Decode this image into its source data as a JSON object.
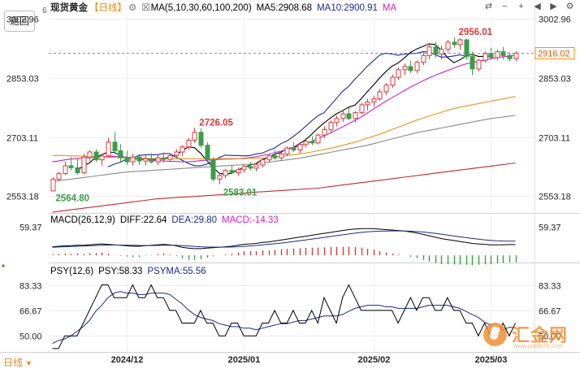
{
  "header": {
    "back_label": "返回",
    "corner_number": "6",
    "instrument": "现货黄金",
    "period_badge": "【日线】",
    "settings_glyph": "⚙",
    "ma_check_glyph": "☒",
    "ma_label": "MA(5,10,30,60,100,200)",
    "ma5": "MA5:2908.68",
    "ma10": "MA10:2900.91",
    "ma_more": "MA"
  },
  "toolbar": {
    "icons": [
      "swap-icon",
      "minus-icon",
      "plus-icon",
      "left-arrow-icon",
      "right-arrow-icon",
      "settings-icon"
    ]
  },
  "colors": {
    "up": "#d93a3a",
    "down": "#3a9d4a",
    "ma5": "#000000",
    "ma10": "#1c2a8c",
    "ma30": "#d11fc9",
    "ma60": "#e8931a",
    "ma100": "#8a8a8a",
    "ma200": "#c8282e",
    "psy": "#000000",
    "psyma": "#1c2a8c",
    "last_price_bg": "#ff8c00",
    "brand": "#f08a2e",
    "label_red": "#d93a3a",
    "label_green": "#3a9d4a"
  },
  "price_axis": {
    "ticks": [
      "3002.96",
      "2853.03",
      "2703.11",
      "2553.18"
    ],
    "last_price": "2916.02"
  },
  "annotations": {
    "high": "2956.01",
    "left_high": "2726.05",
    "left_low": "2564.80",
    "mid_low": "2583.01"
  },
  "macd": {
    "label": "MACD(26,12,9)",
    "diff": "DIFF:22.64",
    "dea": "DEA:29.80",
    "macd": "MACD:-14.33",
    "axis_tick": "59.37"
  },
  "psy": {
    "label": "PSY(12,6)",
    "psy_value": "PSY:58.33",
    "psyma_value": "PSYMA:55.56",
    "axis_ticks": [
      "83.33",
      "66.67",
      "50.00"
    ]
  },
  "date_axis": [
    "2024/12",
    "2025/01",
    "2025/02",
    "2025/03"
  ],
  "period_tab": "日线",
  "brand": {
    "name": "汇金网",
    "url": "www.gold678.com"
  },
  "chart_data": {
    "type": "candlestick",
    "title": "现货黄金【日线】",
    "ylim": [
      2510,
      3010
    ],
    "last_price": 2916.02,
    "high_marker": 2956.01,
    "low_marker": 2564.8,
    "start_date": "2024-11-14",
    "ohlc": [
      [
        2566,
        2600,
        2564.8,
        2596
      ],
      [
        2596,
        2614,
        2590,
        2610
      ],
      [
        2610,
        2640,
        2607,
        2630
      ],
      [
        2630,
        2652,
        2618,
        2625
      ],
      [
        2625,
        2650,
        2608,
        2612
      ],
      [
        2612,
        2660,
        2608,
        2652
      ],
      [
        2652,
        2670,
        2642,
        2665
      ],
      [
        2665,
        2672,
        2640,
        2645
      ],
      [
        2645,
        2660,
        2630,
        2655
      ],
      [
        2655,
        2700,
        2650,
        2690
      ],
      [
        2690,
        2715,
        2660,
        2668
      ],
      [
        2668,
        2685,
        2640,
        2650
      ],
      [
        2650,
        2668,
        2632,
        2640
      ],
      [
        2640,
        2660,
        2630,
        2652
      ],
      [
        2652,
        2660,
        2632,
        2642
      ],
      [
        2642,
        2656,
        2630,
        2648
      ],
      [
        2648,
        2662,
        2636,
        2640
      ],
      [
        2640,
        2658,
        2632,
        2650
      ],
      [
        2650,
        2664,
        2638,
        2646
      ],
      [
        2646,
        2662,
        2640,
        2656
      ],
      [
        2656,
        2672,
        2650,
        2665
      ],
      [
        2665,
        2682,
        2655,
        2678
      ],
      [
        2678,
        2700,
        2670,
        2695
      ],
      [
        2695,
        2726.05,
        2688,
        2715
      ],
      [
        2715,
        2725,
        2675,
        2682
      ],
      [
        2682,
        2690,
        2640,
        2645
      ],
      [
        2645,
        2652,
        2590,
        2596
      ],
      [
        2596,
        2612,
        2583.01,
        2605
      ],
      [
        2605,
        2622,
        2598,
        2618
      ],
      [
        2618,
        2630,
        2608,
        2612
      ],
      [
        2612,
        2626,
        2604,
        2620
      ],
      [
        2620,
        2634,
        2612,
        2628
      ],
      [
        2628,
        2640,
        2618,
        2624
      ],
      [
        2624,
        2636,
        2616,
        2632
      ],
      [
        2632,
        2648,
        2626,
        2645
      ],
      [
        2645,
        2660,
        2638,
        2655
      ],
      [
        2655,
        2670,
        2645,
        2650
      ],
      [
        2650,
        2665,
        2642,
        2660
      ],
      [
        2660,
        2680,
        2655,
        2675
      ],
      [
        2675,
        2690,
        2665,
        2670
      ],
      [
        2670,
        2688,
        2662,
        2684
      ],
      [
        2684,
        2700,
        2676,
        2692
      ],
      [
        2692,
        2705,
        2682,
        2688
      ],
      [
        2688,
        2712,
        2684,
        2708
      ],
      [
        2708,
        2730,
        2700,
        2722
      ],
      [
        2722,
        2745,
        2715,
        2740
      ],
      [
        2740,
        2758,
        2730,
        2750
      ],
      [
        2750,
        2770,
        2742,
        2762
      ],
      [
        2762,
        2778,
        2745,
        2750
      ],
      [
        2750,
        2768,
        2740,
        2765
      ],
      [
        2765,
        2790,
        2760,
        2785
      ],
      [
        2785,
        2800,
        2770,
        2792
      ],
      [
        2792,
        2808,
        2780,
        2800
      ],
      [
        2800,
        2825,
        2795,
        2818
      ],
      [
        2818,
        2840,
        2810,
        2835
      ],
      [
        2835,
        2862,
        2828,
        2855
      ],
      [
        2855,
        2880,
        2848,
        2874
      ],
      [
        2874,
        2890,
        2860,
        2882
      ],
      [
        2882,
        2898,
        2866,
        2872
      ],
      [
        2872,
        2898,
        2865,
        2893
      ],
      [
        2893,
        2918,
        2886,
        2910
      ],
      [
        2910,
        2940,
        2900,
        2932
      ],
      [
        2932,
        2945,
        2905,
        2914
      ],
      [
        2914,
        2935,
        2900,
        2926
      ],
      [
        2926,
        2950,
        2918,
        2944
      ],
      [
        2944,
        2956.01,
        2930,
        2938
      ],
      [
        2938,
        2954,
        2925,
        2950
      ],
      [
        2950,
        2953,
        2900,
        2908
      ],
      [
        2908,
        2920,
        2860,
        2876
      ],
      [
        2876,
        2902,
        2870,
        2898
      ],
      [
        2898,
        2920,
        2892,
        2915
      ],
      [
        2915,
        2930,
        2900,
        2905
      ],
      [
        2905,
        2925,
        2898,
        2920
      ],
      [
        2920,
        2932,
        2900,
        2910
      ],
      [
        2910,
        2918,
        2895,
        2902
      ],
      [
        2902,
        2922,
        2896,
        2916.02
      ]
    ],
    "ma_series": [
      {
        "name": "MA5",
        "from": 4,
        "values": [
          2617,
          2630,
          2637,
          2652,
          2658,
          2665,
          2664,
          2657,
          2649,
          2650,
          2646,
          2646,
          2646,
          2646,
          2648,
          2652,
          2658,
          2667,
          2678,
          2676,
          2662,
          2643,
          2626,
          2611,
          2608,
          2611,
          2619,
          2625,
          2632,
          2636,
          2646,
          2651,
          2659,
          2664,
          2674,
          2676,
          2686,
          2696,
          2710,
          2725,
          2739,
          2751,
          2762,
          2770,
          2779,
          2784,
          2800,
          2818,
          2835,
          2853,
          2869,
          2883,
          2891,
          2904,
          2918,
          2927,
          2933,
          2940,
          2938,
          2924,
          2905,
          2892,
          2899,
          2909,
          2913,
          2908,
          2908,
          2909
        ]
      },
      {
        "name": "MA10",
        "from": 9,
        "values": [
          2627,
          2634,
          2639,
          2647,
          2650,
          2656,
          2658,
          2658,
          2658,
          2661,
          2661,
          2652,
          2644,
          2636,
          2630,
          2630,
          2634,
          2642,
          2651,
          2657,
          2656,
          2656,
          2655,
          2656,
          2660,
          2662,
          2669,
          2675,
          2686,
          2693,
          2704,
          2716,
          2730,
          2744,
          2757,
          2765,
          2783,
          2801,
          2819,
          2832,
          2850,
          2866,
          2883,
          2897,
          2911,
          2916,
          2914,
          2911,
          2914,
          2915,
          2916,
          2920,
          2919,
          2912,
          2906,
          2907,
          2909,
          2912,
          2908
        ]
      },
      {
        "name": "MA30",
        "from": 0,
        "values": [
          2640,
          2642,
          2645,
          2647,
          2648,
          2650,
          2651,
          2652,
          2653,
          2653,
          2654,
          2653,
          2652,
          2650,
          2648,
          2646,
          2644,
          2643,
          2642,
          2641,
          2641,
          2640,
          2640,
          2641,
          2643,
          2644,
          2645,
          2646,
          2647,
          2647,
          2648,
          2649,
          2651,
          2653,
          2656,
          2659,
          2663,
          2667,
          2672,
          2676,
          2680,
          2686,
          2692,
          2699,
          2706,
          2713,
          2721,
          2729,
          2737,
          2745,
          2754,
          2764,
          2774,
          2784,
          2794,
          2803,
          2812,
          2821,
          2830,
          2838,
          2846,
          2853,
          2860,
          2866,
          2872,
          2878,
          2884,
          2889,
          2892,
          2895,
          2898,
          2902,
          2905,
          2907,
          2909,
          2911
        ]
      },
      {
        "name": "MA60",
        "from": 0,
        "values": [
          2656,
          2656,
          2656,
          2655,
          2655,
          2654,
          2654,
          2653,
          2652,
          2652,
          2651,
          2651,
          2650,
          2650,
          2649,
          2649,
          2648,
          2648,
          2648,
          2648,
          2648,
          2648,
          2648,
          2648,
          2648,
          2648,
          2648,
          2648,
          2648,
          2648,
          2648,
          2648,
          2649,
          2649,
          2650,
          2651,
          2652,
          2654,
          2656,
          2658,
          2660,
          2662,
          2665,
          2668,
          2671,
          2674,
          2678,
          2682,
          2686,
          2690,
          2695,
          2700,
          2705,
          2710,
          2716,
          2722,
          2728,
          2734,
          2740,
          2746,
          2751,
          2756,
          2761,
          2766,
          2771,
          2775,
          2779,
          2782,
          2785,
          2788,
          2791,
          2794,
          2797,
          2800,
          2803,
          2806
        ]
      },
      {
        "name": "MA100",
        "from": 0,
        "values": [
          2590,
          2592,
          2594,
          2596,
          2598,
          2600,
          2602,
          2604,
          2606,
          2608,
          2610,
          2612,
          2614,
          2615,
          2616,
          2617,
          2618,
          2619,
          2620,
          2621,
          2622,
          2623,
          2624,
          2625,
          2626,
          2627,
          2628,
          2629,
          2630,
          2631,
          2632,
          2633,
          2634,
          2635,
          2637,
          2639,
          2641,
          2643,
          2645,
          2647,
          2649,
          2652,
          2655,
          2658,
          2661,
          2664,
          2667,
          2670,
          2673,
          2676,
          2679,
          2682,
          2686,
          2690,
          2694,
          2698,
          2702,
          2706,
          2710,
          2714,
          2717,
          2720,
          2723,
          2726,
          2729,
          2732,
          2735,
          2738,
          2741,
          2744,
          2747,
          2750,
          2752,
          2754,
          2756,
          2758
        ]
      },
      {
        "name": "MA200",
        "from": 0,
        "values": [
          2512,
          2514,
          2516,
          2518,
          2520,
          2522,
          2524,
          2526,
          2528,
          2530,
          2532,
          2534,
          2536,
          2538,
          2540,
          2542,
          2544,
          2546,
          2547,
          2548,
          2549,
          2550,
          2551,
          2552,
          2553,
          2554,
          2555,
          2556,
          2557,
          2558,
          2559,
          2560,
          2562,
          2563,
          2564,
          2565,
          2566,
          2567,
          2568,
          2569,
          2570,
          2571,
          2572,
          2573,
          2575,
          2577,
          2579,
          2581,
          2583,
          2585,
          2587,
          2589,
          2591,
          2593,
          2595,
          2597,
          2599,
          2601,
          2603,
          2605,
          2607,
          2609,
          2611,
          2613,
          2615,
          2617,
          2619,
          2621,
          2623,
          2625,
          2627,
          2629,
          2631,
          2633,
          2635,
          2637
        ]
      }
    ],
    "macd_ylim": [
      -10,
      65
    ],
    "macd": {
      "dif": [
        18,
        19,
        20,
        20,
        21,
        21,
        22,
        23,
        24,
        23,
        22,
        21,
        20,
        19,
        19,
        20,
        21,
        22,
        23,
        22,
        20,
        17,
        15,
        14,
        14,
        15,
        16,
        17,
        18,
        19,
        21,
        23,
        24,
        25,
        27,
        28,
        30,
        32,
        34,
        36,
        38,
        40,
        42,
        44,
        46,
        48,
        50,
        52,
        54,
        55,
        56,
        56,
        56,
        55,
        54,
        53,
        52,
        51,
        49,
        47,
        44,
        41,
        38,
        35,
        33,
        31,
        29,
        27,
        25,
        24,
        23,
        22,
        22,
        22,
        22.6,
        22.64
      ],
      "dea": [
        17,
        17.5,
        18,
        18.5,
        19,
        19.5,
        20,
        20.5,
        21,
        21.3,
        21.5,
        21.5,
        21.3,
        21,
        20.7,
        20.5,
        20.5,
        20.7,
        21,
        21.2,
        21,
        20.4,
        19.6,
        18.8,
        18,
        17.5,
        17.2,
        17.1,
        17.2,
        17.5,
        18,
        18.8,
        19.7,
        20.7,
        21.8,
        23,
        24.3,
        25.7,
        27.2,
        28.8,
        30.5,
        32.2,
        34,
        35.8,
        37.6,
        39.4,
        41.2,
        43,
        44.8,
        46.4,
        47.9,
        49.1,
        50,
        50.6,
        51,
        51.2,
        51.2,
        51,
        50.6,
        49.9,
        48.9,
        47.6,
        46,
        44.3,
        42.4,
        40.6,
        38.8,
        37,
        35.3,
        33.8,
        32.5,
        31.4,
        30.6,
        30.1,
        29.9,
        29.8
      ]
    },
    "psy_ylim": [
      40,
      90
    ],
    "psy": [
      41.67,
      41.67,
      50,
      50,
      50,
      58.33,
      66.67,
      75,
      83.33,
      83.33,
      75,
      75,
      75,
      83.33,
      75,
      75,
      83.33,
      75,
      75,
      66.67,
      66.67,
      58.33,
      58.33,
      58.33,
      66.67,
      58.33,
      58.33,
      50,
      50,
      58.33,
      58.33,
      50,
      50,
      50,
      58.33,
      58.33,
      66.67,
      58.33,
      58.33,
      66.67,
      58.33,
      58.33,
      66.67,
      58.33,
      75,
      66.67,
      58.33,
      75,
      83.33,
      75,
      66.67,
      66.67,
      66.67,
      66.67,
      66.67,
      66.67,
      58.33,
      66.67,
      75,
      66.67,
      75,
      75,
      66.67,
      66.67,
      75,
      66.67,
      66.67,
      58.33,
      58.33,
      50,
      58.33,
      50,
      50,
      58.33,
      50,
      58.33
    ],
    "psyma": [
      45,
      47,
      48,
      50,
      53,
      56,
      60,
      66,
      70,
      75,
      78,
      79,
      78,
      78,
      77,
      77,
      78,
      78,
      78,
      77,
      74,
      71,
      67,
      64,
      62,
      61,
      60,
      58,
      57,
      56,
      56,
      55,
      55,
      54,
      55,
      56,
      57,
      58,
      58,
      59,
      60,
      60,
      61,
      62,
      63,
      63,
      63,
      64,
      66,
      68,
      69,
      70,
      70,
      70,
      69,
      69,
      68,
      68,
      68,
      68,
      69,
      70,
      70,
      70,
      70,
      69,
      68,
      66,
      64,
      62,
      59,
      57,
      55,
      54,
      55.56,
      55.56
    ]
  }
}
